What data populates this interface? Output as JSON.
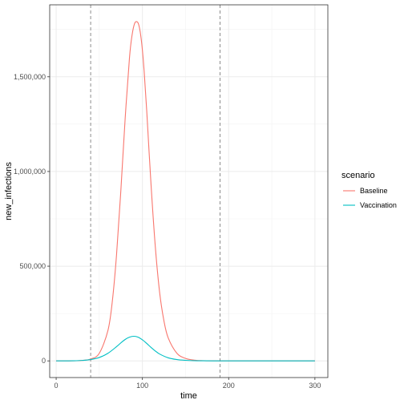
{
  "chart_data": {
    "type": "line",
    "title": "",
    "xlabel": "time",
    "ylabel": "new_infections",
    "xlim": [
      -7.5,
      315
    ],
    "ylim": [
      -88000,
      1880000
    ],
    "x_ticks": [
      0,
      100,
      200,
      300
    ],
    "x_tick_labels": [
      "0",
      "100",
      "200",
      "300"
    ],
    "y_ticks": [
      0,
      500000,
      1000000,
      1500000
    ],
    "y_tick_labels": [
      "0",
      "500,000",
      "1,000,000",
      "1,500,000"
    ],
    "grid": true,
    "legend_title": "scenario",
    "legend_position": "right",
    "vlines": [
      40,
      190
    ],
    "series": [
      {
        "name": "Baseline",
        "color": "#F8766D",
        "x": [
          0,
          10,
          20,
          30,
          40,
          50,
          60,
          65,
          70,
          75,
          80,
          85,
          88,
          91,
          94,
          96,
          98,
          100,
          102,
          105,
          110,
          115,
          120,
          125,
          130,
          140,
          150,
          160,
          170,
          180,
          190,
          200,
          250,
          300
        ],
        "y": [
          0,
          50,
          400,
          2500,
          10000,
          40000,
          160000,
          310000,
          560000,
          900000,
          1280000,
          1600000,
          1720000,
          1782000,
          1790000,
          1770000,
          1720000,
          1640000,
          1530000,
          1320000,
          930000,
          600000,
          360000,
          210000,
          120000,
          40000,
          13000,
          4000,
          1200,
          400,
          120,
          30,
          0,
          0
        ]
      },
      {
        "name": "Vaccination",
        "color": "#00BFC4",
        "x": [
          0,
          10,
          20,
          30,
          40,
          50,
          60,
          70,
          75,
          80,
          85,
          90,
          95,
          100,
          105,
          110,
          115,
          120,
          130,
          140,
          150,
          160,
          170,
          180,
          190,
          200,
          250,
          300
        ],
        "y": [
          0,
          100,
          600,
          2500,
          7000,
          18000,
          40000,
          75000,
          95000,
          113000,
          125000,
          130000,
          125000,
          111000,
          92000,
          71000,
          52000,
          36000,
          16000,
          7000,
          3000,
          1200,
          500,
          200,
          80,
          30,
          0,
          0
        ]
      }
    ]
  }
}
